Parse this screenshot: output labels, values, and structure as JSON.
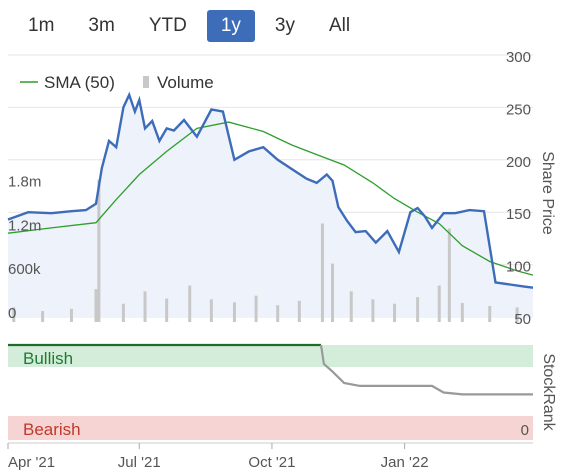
{
  "range_buttons": [
    "1m",
    "3m",
    "YTD",
    "1y",
    "3y",
    "All"
  ],
  "active_range": "1y",
  "colors": {
    "price": "#3d6cb9",
    "sma": "#2e9e2e",
    "volume": "#c8c8c8",
    "area_fill": "#eef2fa",
    "bullish_bg": "#d4edda",
    "bullish_text": "#1e7b34",
    "bearish_bg": "#f7d4d4",
    "bearish_text": "#c0392b",
    "stockrank_before": "#1e6b2e",
    "stockrank_after": "#999999"
  },
  "chart_data": [
    {
      "type": "line",
      "legend": [
        "SMA (50)",
        "Volume"
      ],
      "legend_position": "top-left",
      "ylabel": "Share Price",
      "yticks": [
        50,
        100,
        150,
        200,
        250,
        300
      ],
      "ylim": [
        50,
        300
      ],
      "volume_ticks": [
        "1.8m",
        "1.2m",
        "600k",
        "0"
      ],
      "xticks": [
        "Apr '21",
        "Jul '21",
        "Oct '21",
        "Jan '22"
      ],
      "series": [
        {
          "name": "Share Price",
          "x": [
            "2021-04-01",
            "2021-04-15",
            "2021-05-01",
            "2021-05-15",
            "2021-05-25",
            "2021-06-01",
            "2021-06-05",
            "2021-06-10",
            "2021-06-15",
            "2021-06-20",
            "2021-06-24",
            "2021-06-28",
            "2021-07-01",
            "2021-07-05",
            "2021-07-10",
            "2021-07-15",
            "2021-07-20",
            "2021-07-25",
            "2021-08-01",
            "2021-08-10",
            "2021-08-20",
            "2021-08-28",
            "2021-09-05",
            "2021-09-15",
            "2021-09-25",
            "2021-10-05",
            "2021-10-15",
            "2021-10-25",
            "2021-11-01",
            "2021-11-08",
            "2021-11-12",
            "2021-11-16",
            "2021-11-22",
            "2021-11-28",
            "2021-12-05",
            "2021-12-12",
            "2021-12-20",
            "2021-12-28",
            "2022-01-05",
            "2022-01-10",
            "2022-01-15",
            "2022-01-20",
            "2022-01-28",
            "2022-02-05",
            "2022-02-15",
            "2022-02-25",
            "2022-03-05",
            "2022-03-15",
            "2022-03-25",
            "2022-03-31"
          ],
          "values": [
            143,
            150,
            149,
            151,
            152,
            158,
            192,
            218,
            212,
            250,
            262,
            246,
            257,
            230,
            237,
            218,
            230,
            228,
            238,
            222,
            248,
            246,
            200,
            208,
            212,
            200,
            191,
            182,
            178,
            186,
            180,
            155,
            142,
            131,
            132,
            121,
            132,
            112,
            150,
            154,
            146,
            135,
            149,
            149,
            152,
            151,
            83,
            81,
            79,
            78
          ]
        },
        {
          "name": "SMA (50)",
          "x": [
            "2021-04-01",
            "2021-05-01",
            "2021-06-01",
            "2021-06-15",
            "2021-07-01",
            "2021-07-20",
            "2021-08-10",
            "2021-09-01",
            "2021-09-25",
            "2021-10-15",
            "2021-11-01",
            "2021-11-20",
            "2021-12-10",
            "2021-12-25",
            "2022-01-10",
            "2022-01-25",
            "2022-02-10",
            "2022-03-01",
            "2022-03-20",
            "2022-03-31"
          ],
          "values": [
            130,
            135,
            140,
            162,
            186,
            208,
            230,
            236,
            227,
            214,
            205,
            195,
            178,
            163,
            150,
            139,
            118,
            103,
            94,
            90
          ]
        },
        {
          "name": "Volume",
          "x": [
            "2021-04-05",
            "2021-04-25",
            "2021-05-15",
            "2021-06-01",
            "2021-06-03",
            "2021-06-20",
            "2021-07-05",
            "2021-07-20",
            "2021-08-05",
            "2021-08-20",
            "2021-09-05",
            "2021-09-20",
            "2021-10-05",
            "2021-10-20",
            "2021-11-05",
            "2021-11-12",
            "2021-11-25",
            "2021-12-10",
            "2021-12-25",
            "2022-01-10",
            "2022-01-25",
            "2022-02-01",
            "2022-02-10",
            "2022-03-01",
            "2022-03-20"
          ],
          "values": [
            200000,
            150000,
            180000,
            450000,
            1950000,
            250000,
            420000,
            320000,
            500000,
            310000,
            270000,
            360000,
            230000,
            290000,
            1350000,
            800000,
            420000,
            310000,
            250000,
            340000,
            500000,
            1280000,
            260000,
            220000,
            200000
          ]
        }
      ]
    },
    {
      "type": "line",
      "ylabel": "StockRank",
      "bands": [
        "Bullish",
        "Bearish"
      ],
      "yticks": [
        0
      ],
      "ylim": [
        0,
        100
      ],
      "xticks": [
        "Apr '21",
        "Jul '21",
        "Oct '21",
        "Jan '22"
      ],
      "series": [
        {
          "name": "StockRank",
          "x": [
            "2021-04-01",
            "2021-11-04",
            "2021-11-06",
            "2021-11-12",
            "2021-11-20",
            "2021-12-01",
            "2022-01-20",
            "2022-01-28",
            "2022-02-10",
            "2022-03-31"
          ],
          "values": [
            100,
            100,
            80,
            72,
            60,
            57,
            57,
            50,
            48,
            48
          ]
        }
      ]
    }
  ]
}
